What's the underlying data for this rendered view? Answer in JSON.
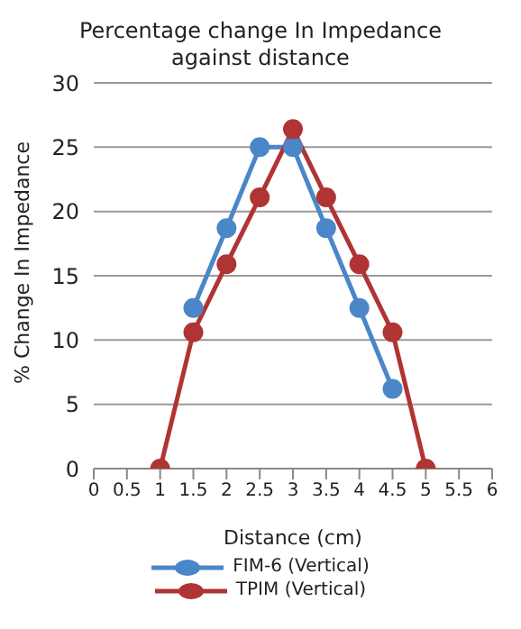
{
  "chart_data": {
    "type": "line",
    "title": "Percentage change In Impedance against distance",
    "xlabel": "Distance (cm)",
    "ylabel": "% Change In Impedance",
    "categories": [
      "0",
      "0.5",
      "1",
      "1.5",
      "2",
      "2.5",
      "3",
      "3.5",
      "4",
      "4.5",
      "5",
      "5.5",
      "6"
    ],
    "series": [
      {
        "name": "FIM-6 (Vertical)",
        "color": "#4a86c8",
        "values": [
          null,
          null,
          null,
          12.5,
          18.7,
          25,
          25,
          18.7,
          12.5,
          6.2,
          null,
          null,
          null
        ]
      },
      {
        "name": "TPIM (Vertical)",
        "color": "#b03434",
        "values": [
          null,
          null,
          0,
          10.6,
          15.9,
          21.1,
          26.4,
          21.1,
          15.9,
          10.6,
          0,
          null,
          null
        ]
      }
    ],
    "ylim": [
      0,
      30
    ],
    "yticks": [
      0,
      5,
      10,
      15,
      20,
      25,
      30
    ],
    "grid": "y",
    "legend": "bottom",
    "marker": "circle",
    "line_style": "solid"
  }
}
